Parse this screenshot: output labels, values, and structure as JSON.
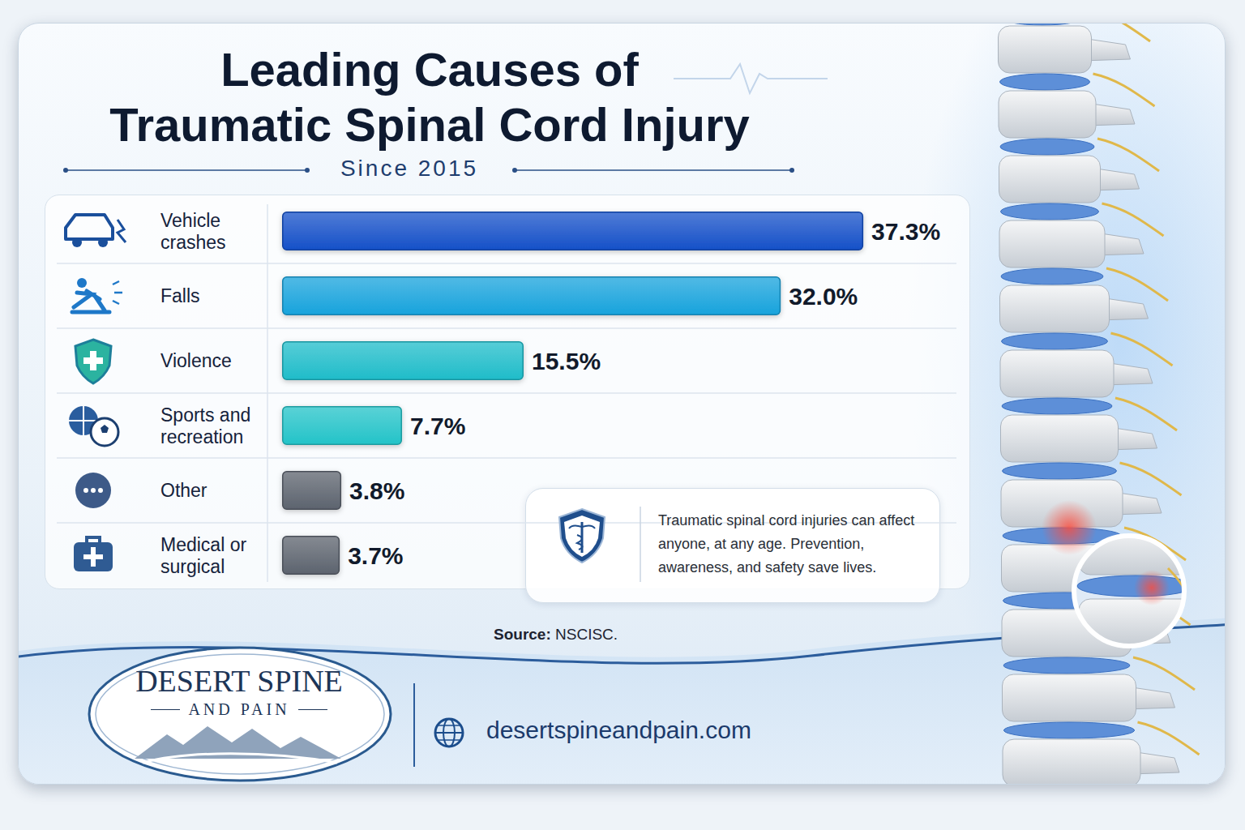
{
  "chart_data": {
    "type": "bar",
    "orientation": "horizontal",
    "title": "Leading Causes of\nTraumatic Spinal Cord Injury",
    "subtitle": "Since 2015",
    "categories": [
      "Vehicle crashes",
      "Falls",
      "Violence",
      "Sports and recreation",
      "Other",
      "Medical or surgical"
    ],
    "values": [
      37.3,
      32.0,
      15.5,
      7.7,
      3.8,
      3.7
    ],
    "value_labels": [
      "37.3%",
      "32.0%",
      "15.5%",
      "7.7%",
      "3.8%",
      "3.7%"
    ],
    "colors": [
      "#1550c8",
      "#17a3dc",
      "#1fbcc9",
      "#23c3c8",
      "#5c636e",
      "#5c636e"
    ],
    "xlim": [
      0,
      40
    ],
    "data_labels": true,
    "tick_labels": "y",
    "grid": false,
    "annotations": {
      "note": "Traumatic spinal cord injuries can affect anyone, at any age. Prevention, awareness, and safety save lives.",
      "source_label": "Source:",
      "source": "NSCISC.",
      "logo_name": "DESERT SPINE",
      "logo_tagline": "AND PAIN",
      "website": "desertspineandpain.com"
    }
  }
}
